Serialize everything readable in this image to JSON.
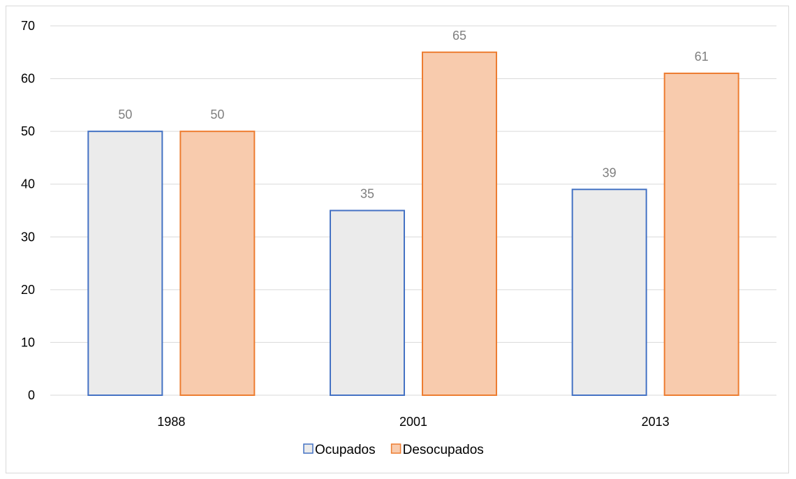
{
  "chart_data": {
    "type": "bar",
    "title": "",
    "xlabel": "",
    "ylabel": "",
    "categories": [
      "1988",
      "2001",
      "2013"
    ],
    "series": [
      {
        "name": "Ocupados",
        "values": [
          50,
          35,
          39
        ],
        "fill": "#ebebeb",
        "stroke": "#4472c4"
      },
      {
        "name": "Desocupados",
        "values": [
          50,
          65,
          61
        ],
        "fill": "#f8cbad",
        "stroke": "#ed7d31"
      }
    ],
    "ylim": [
      0,
      70
    ],
    "yticks": [
      0,
      10,
      20,
      30,
      40,
      50,
      60,
      70
    ],
    "ytick_labels": [
      "0",
      "10",
      "20",
      "30",
      "40",
      "50",
      "60",
      "70"
    ],
    "grid": true,
    "gridline_color": "#d9d9d9",
    "data_labels": true,
    "legend_position": "bottom"
  }
}
